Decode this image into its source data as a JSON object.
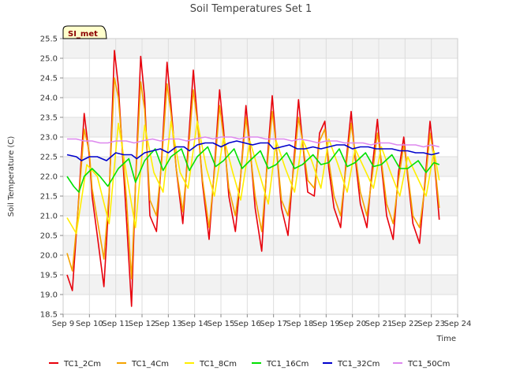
{
  "chart_data": {
    "type": "line",
    "title": "Soil Temperatures Set 1",
    "xlabel": "Time",
    "ylabel": "Soil Temperature (C)",
    "badge": "SI_met",
    "xlim": [
      9,
      24
    ],
    "ylim": [
      18.5,
      25.5
    ],
    "x_ticks": [
      {
        "value": 9,
        "label": "Sep 9"
      },
      {
        "value": 10,
        "label": "Sep 10"
      },
      {
        "value": 11,
        "label": "Sep 11"
      },
      {
        "value": 12,
        "label": "Sep 12"
      },
      {
        "value": 13,
        "label": "Sep 13"
      },
      {
        "value": 14,
        "label": "Sep 14"
      },
      {
        "value": 15,
        "label": "Sep 15"
      },
      {
        "value": 16,
        "label": "Sep 16"
      },
      {
        "value": 17,
        "label": "Sep 17"
      },
      {
        "value": 18,
        "label": "Sep 18"
      },
      {
        "value": 19,
        "label": "Sep 19"
      },
      {
        "value": 20,
        "label": "Sep 20"
      },
      {
        "value": 21,
        "label": "Sep 21"
      },
      {
        "value": 22,
        "label": "Sep 22"
      },
      {
        "value": 23,
        "label": "Sep 23"
      },
      {
        "value": 24,
        "label": "Sep 24"
      }
    ],
    "y_ticks": [
      18.5,
      19.0,
      19.5,
      20.0,
      20.5,
      21.0,
      21.5,
      22.0,
      22.5,
      23.0,
      23.5,
      24.0,
      24.5,
      25.0,
      25.5
    ],
    "grid": true,
    "legend_position": "bottom",
    "series": [
      {
        "name": "TC1_2Cm",
        "color": "#e8000b",
        "x": [
          9.15,
          9.35,
          9.55,
          9.8,
          10.0,
          10.1,
          10.3,
          10.55,
          10.75,
          10.95,
          11.1,
          11.4,
          11.6,
          11.75,
          11.95,
          12.1,
          12.3,
          12.55,
          12.75,
          12.95,
          13.1,
          13.3,
          13.55,
          13.75,
          13.95,
          14.1,
          14.3,
          14.55,
          14.75,
          14.95,
          15.1,
          15.3,
          15.55,
          15.75,
          15.95,
          16.1,
          16.3,
          16.55,
          16.75,
          16.95,
          17.1,
          17.3,
          17.55,
          17.75,
          17.95,
          18.1,
          18.3,
          18.55,
          18.75,
          18.95,
          19.1,
          19.3,
          19.55,
          19.75,
          19.95,
          20.1,
          20.3,
          20.55,
          20.75,
          20.95,
          21.1,
          21.3,
          21.55,
          21.75,
          21.95,
          22.1,
          22.3,
          22.55,
          22.75,
          22.95,
          23.1,
          23.3
        ],
        "y": [
          19.5,
          19.1,
          21.0,
          23.6,
          22.5,
          21.5,
          20.5,
          19.2,
          21.5,
          25.2,
          24.3,
          21.0,
          18.7,
          21.8,
          25.05,
          24.0,
          21.0,
          20.6,
          22.5,
          24.9,
          23.8,
          22.2,
          20.8,
          22.7,
          24.7,
          23.5,
          21.8,
          20.4,
          22.2,
          24.2,
          23.2,
          21.5,
          20.6,
          22.0,
          23.8,
          22.8,
          21.2,
          20.1,
          22.3,
          24.05,
          22.8,
          21.2,
          20.5,
          22.2,
          23.95,
          22.9,
          21.6,
          21.5,
          23.1,
          23.4,
          22.2,
          21.2,
          20.7,
          22.3,
          23.65,
          22.5,
          21.3,
          20.7,
          22.2,
          23.45,
          22.3,
          21.0,
          20.4,
          22.1,
          23.0,
          22.0,
          20.8,
          20.3,
          21.8,
          23.4,
          22.5,
          20.9
        ]
      },
      {
        "name": "TC1_4Cm",
        "color": "#f5a300",
        "x": [
          9.15,
          9.35,
          9.55,
          9.8,
          10.0,
          10.1,
          10.3,
          10.55,
          10.75,
          10.95,
          11.1,
          11.4,
          11.6,
          11.75,
          11.95,
          12.1,
          12.3,
          12.55,
          12.75,
          12.95,
          13.1,
          13.3,
          13.55,
          13.75,
          13.95,
          14.1,
          14.3,
          14.55,
          14.75,
          14.95,
          15.1,
          15.3,
          15.55,
          15.75,
          15.95,
          16.1,
          16.3,
          16.55,
          16.75,
          16.95,
          17.1,
          17.3,
          17.55,
          17.75,
          17.95,
          18.1,
          18.3,
          18.55,
          18.75,
          18.95,
          19.1,
          19.3,
          19.55,
          19.75,
          19.95,
          20.1,
          20.3,
          20.55,
          20.75,
          20.95,
          21.1,
          21.3,
          21.55,
          21.75,
          21.95,
          22.1,
          22.3,
          22.55,
          22.75,
          22.95,
          23.1,
          23.3
        ],
        "y": [
          20.05,
          19.6,
          21.0,
          23.2,
          22.6,
          21.7,
          20.9,
          19.9,
          21.6,
          24.5,
          24.0,
          21.5,
          19.4,
          21.8,
          24.4,
          23.7,
          21.4,
          21.0,
          22.4,
          24.35,
          23.6,
          22.2,
          21.1,
          22.5,
          24.2,
          23.4,
          21.9,
          20.7,
          22.1,
          23.8,
          23.0,
          21.7,
          21.0,
          22.0,
          23.5,
          22.7,
          21.5,
          20.6,
          22.2,
          23.65,
          22.8,
          21.4,
          21.0,
          22.1,
          23.5,
          22.9,
          21.9,
          21.7,
          22.9,
          23.2,
          22.4,
          21.5,
          21.0,
          22.2,
          23.35,
          22.6,
          21.6,
          21.0,
          22.0,
          23.1,
          22.4,
          21.3,
          20.8,
          21.9,
          22.8,
          22.1,
          21.0,
          20.7,
          21.7,
          23.1,
          22.5,
          21.2
        ]
      },
      {
        "name": "TC1_8Cm",
        "color": "#ffee00",
        "x": [
          9.15,
          9.5,
          9.9,
          10.3,
          10.75,
          11.1,
          11.4,
          11.75,
          12.1,
          12.45,
          12.8,
          13.1,
          13.45,
          13.75,
          14.1,
          14.45,
          14.75,
          15.1,
          15.45,
          15.75,
          16.1,
          16.45,
          16.8,
          17.1,
          17.45,
          17.8,
          18.1,
          18.45,
          18.8,
          19.1,
          19.45,
          19.8,
          20.1,
          20.45,
          20.8,
          21.1,
          21.45,
          21.8,
          22.1,
          22.45,
          22.8,
          23.1,
          23.3
        ],
        "y": [
          20.95,
          20.55,
          22.3,
          22.0,
          20.8,
          23.35,
          22.1,
          20.7,
          23.3,
          22.1,
          21.6,
          23.4,
          22.1,
          21.7,
          23.4,
          22.2,
          21.5,
          23.0,
          22.1,
          21.4,
          22.9,
          22.1,
          21.3,
          22.9,
          22.2,
          21.6,
          22.95,
          22.4,
          21.7,
          22.95,
          22.3,
          21.6,
          22.7,
          22.2,
          21.7,
          22.75,
          22.1,
          21.5,
          22.5,
          22.0,
          21.5,
          22.65,
          21.9
        ]
      },
      {
        "name": "TC1_16Cm",
        "color": "#00e000",
        "x": [
          9.15,
          9.4,
          9.6,
          9.8,
          10.1,
          10.4,
          10.7,
          11.1,
          11.5,
          11.75,
          12.1,
          12.5,
          12.8,
          13.1,
          13.5,
          13.8,
          14.1,
          14.5,
          14.8,
          15.1,
          15.5,
          15.8,
          16.1,
          16.5,
          16.8,
          17.1,
          17.5,
          17.8,
          18.1,
          18.5,
          18.8,
          19.1,
          19.5,
          19.8,
          20.1,
          20.5,
          20.8,
          21.1,
          21.5,
          21.8,
          22.1,
          22.5,
          22.8,
          23.1,
          23.3
        ],
        "y": [
          22.0,
          21.75,
          21.6,
          22.0,
          22.2,
          22.0,
          21.75,
          22.2,
          22.45,
          21.85,
          22.4,
          22.7,
          22.15,
          22.5,
          22.7,
          22.15,
          22.5,
          22.75,
          22.25,
          22.4,
          22.7,
          22.2,
          22.4,
          22.65,
          22.2,
          22.3,
          22.6,
          22.2,
          22.3,
          22.55,
          22.3,
          22.35,
          22.7,
          22.25,
          22.35,
          22.6,
          22.25,
          22.3,
          22.55,
          22.2,
          22.2,
          22.4,
          22.1,
          22.35,
          22.3
        ]
      },
      {
        "name": "TC1_32Cm",
        "color": "#0000cc",
        "x": [
          9.15,
          9.5,
          9.7,
          10.0,
          10.3,
          10.65,
          11.0,
          11.3,
          11.6,
          11.8,
          12.1,
          12.4,
          12.7,
          13.0,
          13.3,
          13.6,
          13.8,
          14.1,
          14.4,
          14.7,
          15.0,
          15.3,
          15.6,
          15.9,
          16.2,
          16.5,
          16.8,
          17.0,
          17.3,
          17.6,
          17.9,
          18.2,
          18.5,
          18.8,
          19.1,
          19.4,
          19.7,
          20.0,
          20.3,
          20.6,
          20.9,
          21.2,
          21.5,
          21.8,
          22.1,
          22.4,
          22.7,
          23.0,
          23.3
        ],
        "y": [
          22.55,
          22.5,
          22.4,
          22.5,
          22.5,
          22.4,
          22.6,
          22.55,
          22.55,
          22.45,
          22.6,
          22.65,
          22.7,
          22.6,
          22.75,
          22.75,
          22.65,
          22.8,
          22.85,
          22.85,
          22.75,
          22.85,
          22.9,
          22.85,
          22.8,
          22.85,
          22.85,
          22.7,
          22.75,
          22.8,
          22.7,
          22.7,
          22.75,
          22.7,
          22.75,
          22.8,
          22.8,
          22.7,
          22.75,
          22.75,
          22.7,
          22.7,
          22.7,
          22.65,
          22.65,
          22.6,
          22.6,
          22.55,
          22.6
        ]
      },
      {
        "name": "TC1_50Cm",
        "color": "#dd88ee",
        "x": [
          9.15,
          9.5,
          9.8,
          10.1,
          10.4,
          10.7,
          11.0,
          11.4,
          11.7,
          12.0,
          12.4,
          12.7,
          13.0,
          13.4,
          13.7,
          14.0,
          14.4,
          14.7,
          15.0,
          15.4,
          15.7,
          16.0,
          16.4,
          16.7,
          17.0,
          17.4,
          17.7,
          18.0,
          18.4,
          18.7,
          19.0,
          19.4,
          19.7,
          20.0,
          20.4,
          20.7,
          21.0,
          21.4,
          21.7,
          22.0,
          22.4,
          22.7,
          23.0,
          23.3
        ],
        "y": [
          22.95,
          22.95,
          22.9,
          22.9,
          22.85,
          22.85,
          22.9,
          22.9,
          22.85,
          22.9,
          22.95,
          22.9,
          22.95,
          22.95,
          22.9,
          22.95,
          23.0,
          22.95,
          23.0,
          23.0,
          22.95,
          23.0,
          23.0,
          22.95,
          22.95,
          22.95,
          22.9,
          22.95,
          22.9,
          22.85,
          22.9,
          22.9,
          22.85,
          22.85,
          22.85,
          22.8,
          22.85,
          22.85,
          22.8,
          22.8,
          22.8,
          22.75,
          22.8,
          22.75
        ]
      }
    ]
  }
}
